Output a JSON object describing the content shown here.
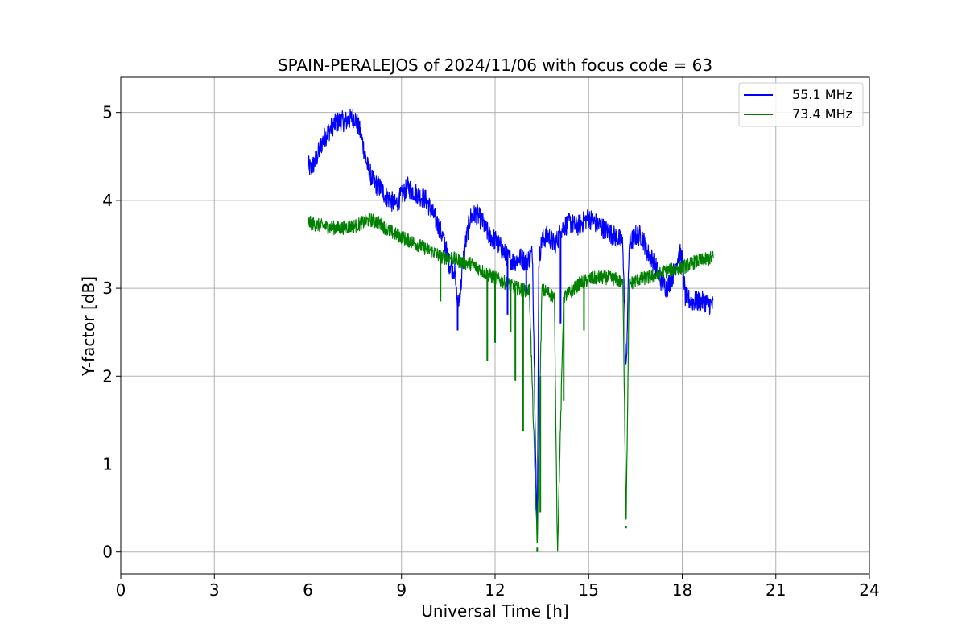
{
  "chart_data": {
    "type": "line",
    "title": "SPAIN-PERALEJOS of 2024/11/06 with focus code = 63",
    "xlabel": "Universal Time [h]",
    "ylabel": "Y-factor [dB]",
    "xlim": [
      0,
      24
    ],
    "ylim": [
      -0.25,
      5.4
    ],
    "xticks": [
      0,
      3,
      6,
      9,
      12,
      15,
      18,
      21,
      24
    ],
    "xtick_labels": [
      "0",
      "3",
      "6",
      "9",
      "12",
      "15",
      "18",
      "21",
      "24"
    ],
    "yticks": [
      0,
      1,
      2,
      3,
      4,
      5
    ],
    "ytick_labels": [
      "0",
      "1",
      "2",
      "3",
      "4",
      "5"
    ],
    "grid": true,
    "legend_position": "top-right",
    "series": [
      {
        "name": "55.1 MHz",
        "color": "#0000ff",
        "x": [
          6.0,
          6.1,
          6.3,
          6.5,
          6.8,
          7.0,
          7.2,
          7.5,
          7.7,
          7.9,
          8.1,
          8.3,
          8.5,
          8.8,
          9.0,
          9.2,
          9.4,
          9.6,
          9.8,
          10.0,
          10.2,
          10.4,
          10.5,
          10.7,
          10.8,
          10.9,
          11.0,
          11.2,
          11.4,
          11.6,
          11.8,
          12.0,
          12.2,
          12.4,
          12.6,
          12.8,
          13.0,
          13.2,
          13.35,
          13.4,
          13.5,
          13.7,
          13.9,
          14.0,
          14.1,
          14.2,
          14.4,
          14.6,
          14.8,
          15.0,
          15.2,
          15.4,
          15.6,
          15.8,
          16.0,
          16.1,
          16.2,
          16.3,
          16.5,
          16.7,
          16.9,
          17.1,
          17.3,
          17.5,
          17.7,
          17.9,
          18.0,
          18.1,
          18.3,
          18.5,
          18.7,
          19.0
        ],
        "y": [
          4.4,
          4.35,
          4.5,
          4.7,
          4.85,
          4.9,
          4.9,
          4.95,
          4.75,
          4.4,
          4.2,
          4.15,
          4.05,
          3.95,
          4.05,
          4.15,
          4.1,
          4.05,
          4.0,
          3.85,
          3.7,
          3.5,
          3.3,
          3.2,
          2.8,
          3.0,
          3.4,
          3.8,
          3.85,
          3.75,
          3.6,
          3.55,
          3.45,
          3.35,
          3.3,
          3.35,
          3.3,
          3.4,
          0.05,
          3.3,
          3.55,
          3.6,
          3.5,
          3.55,
          3.65,
          3.7,
          3.75,
          3.7,
          3.75,
          3.8,
          3.75,
          3.7,
          3.65,
          3.6,
          3.55,
          3.5,
          2.0,
          3.5,
          3.6,
          3.6,
          3.4,
          3.3,
          3.1,
          3.0,
          3.15,
          3.4,
          3.35,
          2.9,
          2.85,
          2.85,
          2.85,
          2.8
        ],
        "spread": 0.12
      },
      {
        "name": "73.4 MHz",
        "color": "#008000",
        "x": [
          6.0,
          6.3,
          6.6,
          7.0,
          7.3,
          7.6,
          8.0,
          8.3,
          8.6,
          8.9,
          9.2,
          9.5,
          9.8,
          10.1,
          10.3,
          10.6,
          10.9,
          11.2,
          11.5,
          11.8,
          12.1,
          12.4,
          12.7,
          12.9,
          13.1,
          13.35,
          13.5,
          13.7,
          13.9,
          14.0,
          14.2,
          14.4,
          14.7,
          15.0,
          15.3,
          15.6,
          15.9,
          16.1,
          16.2,
          16.3,
          16.6,
          16.9,
          17.2,
          17.5,
          17.8,
          18.1,
          18.4,
          18.7,
          19.0
        ],
        "y": [
          3.75,
          3.72,
          3.7,
          3.68,
          3.7,
          3.72,
          3.78,
          3.74,
          3.65,
          3.6,
          3.55,
          3.5,
          3.45,
          3.4,
          3.35,
          3.35,
          3.3,
          3.28,
          3.22,
          3.15,
          3.1,
          3.05,
          3.0,
          2.98,
          2.98,
          0.05,
          2.98,
          2.95,
          2.9,
          0.0,
          2.9,
          2.95,
          3.05,
          3.1,
          3.12,
          3.12,
          3.1,
          3.05,
          0.3,
          3.05,
          3.1,
          3.12,
          3.15,
          3.2,
          3.22,
          3.25,
          3.3,
          3.32,
          3.35
        ],
        "spread": 0.08
      }
    ],
    "dips": [
      {
        "series": 1,
        "x": 10.25,
        "y": 2.85
      },
      {
        "series": 1,
        "x": 11.75,
        "y": 2.17
      },
      {
        "series": 1,
        "x": 12.0,
        "y": 2.38
      },
      {
        "series": 1,
        "x": 12.5,
        "y": 2.5
      },
      {
        "series": 1,
        "x": 12.65,
        "y": 1.95
      },
      {
        "series": 1,
        "x": 12.9,
        "y": 1.37
      },
      {
        "series": 1,
        "x": 13.35,
        "y": 0.0
      },
      {
        "series": 1,
        "x": 13.45,
        "y": 0.45
      },
      {
        "series": 1,
        "x": 14.0,
        "y": 0.0
      },
      {
        "series": 1,
        "x": 14.2,
        "y": 1.72
      },
      {
        "series": 1,
        "x": 14.85,
        "y": 2.52
      },
      {
        "series": 1,
        "x": 16.2,
        "y": 0.27
      },
      {
        "series": 0,
        "x": 10.8,
        "y": 2.52
      },
      {
        "series": 0,
        "x": 12.4,
        "y": 2.7
      },
      {
        "series": 0,
        "x": 13.0,
        "y": 2.95
      },
      {
        "series": 0,
        "x": 14.1,
        "y": 2.6
      }
    ]
  }
}
